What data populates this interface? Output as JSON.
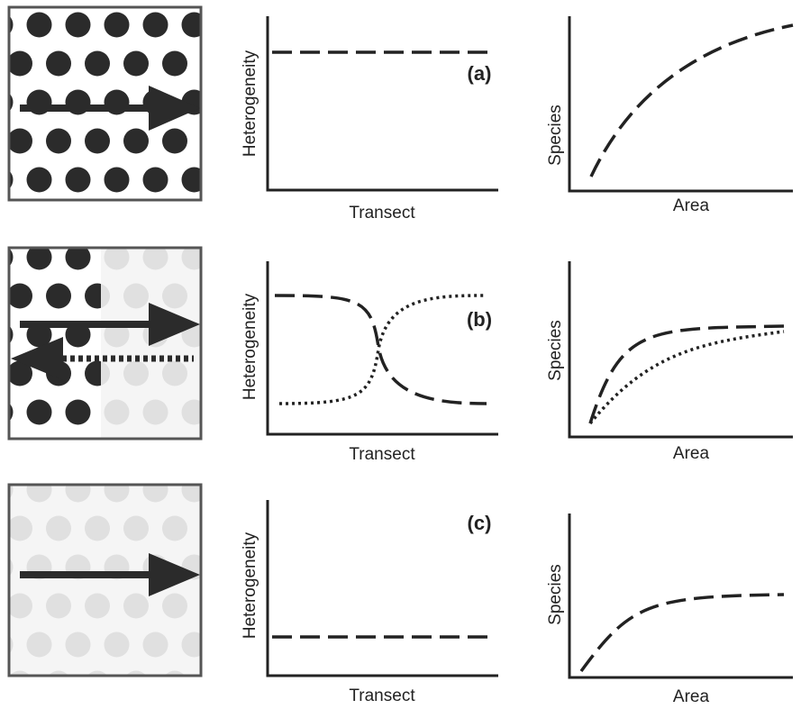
{
  "rows": [
    {
      "label": "(a)",
      "transect_y_label": "Heterogeneity",
      "transect_x_label": "Transect",
      "area_y_label": "Species",
      "area_x_label": "Area"
    },
    {
      "label": "(b)",
      "transect_y_label": "Heterogeneity",
      "transect_x_label": "Transect",
      "area_y_label": "Species",
      "area_x_label": "Area"
    },
    {
      "label": "(c)",
      "transect_y_label": "Heterogeneity",
      "transect_x_label": "Transect",
      "area_y_label": "Species",
      "area_x_label": "Area"
    }
  ]
}
